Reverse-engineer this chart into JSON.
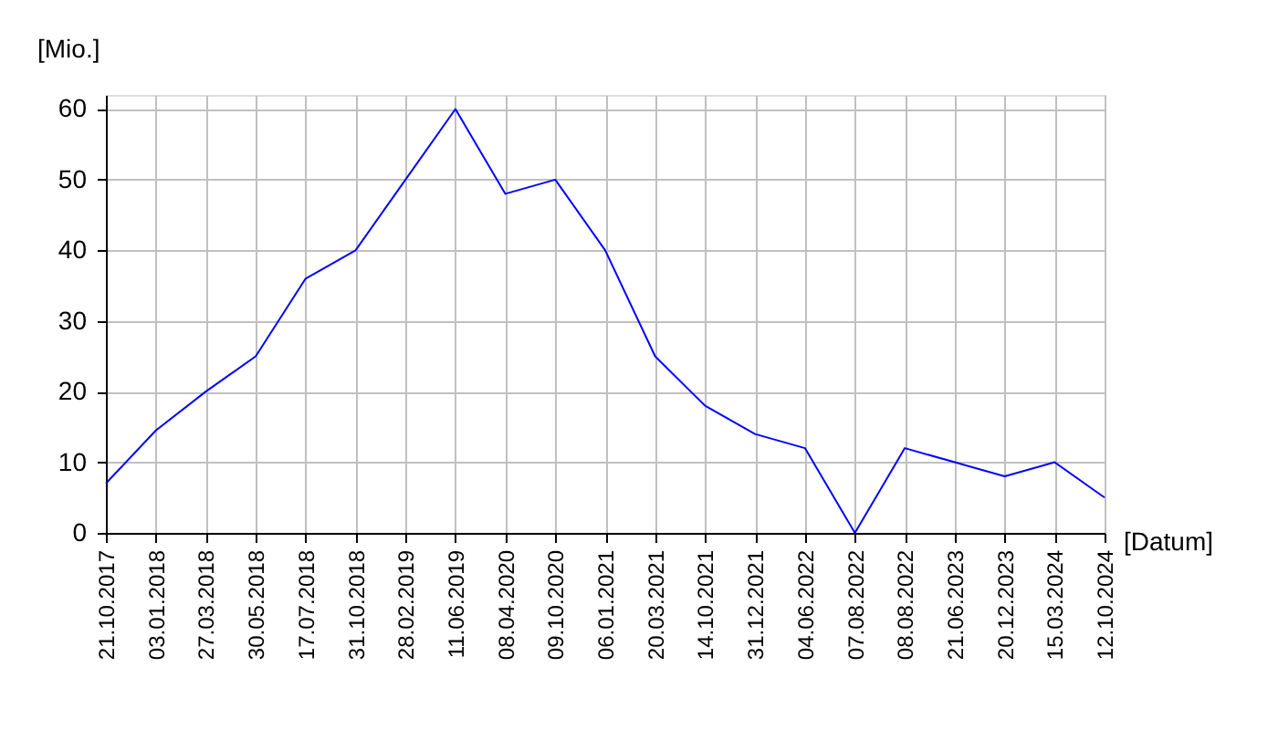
{
  "chart_data": {
    "type": "line",
    "xlabel": "[Datum]",
    "ylabel": "[Mio.]",
    "categories": [
      "21.10.2017",
      "03.01.2018",
      "27.03.2018",
      "30.05.2018",
      "17.07.2018",
      "31.10.2018",
      "28.02.2019",
      "11.06.2019",
      "08.04.2020",
      "09.10.2020",
      "06.01.2021",
      "20.03.2021",
      "14.10.2021",
      "31.12.2021",
      "04.06.2022",
      "07.08.2022",
      "08.08.2022",
      "21.06.2023",
      "20.12.2023",
      "15.03.2024",
      "12.10.2024"
    ],
    "series": [
      {
        "color": "#0000ff",
        "values": [
          7,
          14.5,
          20,
          25,
          36,
          40,
          50,
          60,
          48,
          50,
          40,
          25,
          18,
          14,
          12,
          0,
          12,
          10,
          8,
          10,
          5
        ]
      }
    ],
    "ylim": [
      0,
      62
    ],
    "yticks": [
      0,
      10,
      20,
      30,
      40,
      50,
      60
    ],
    "grid": true,
    "marker": "none",
    "line_style": "solid"
  }
}
